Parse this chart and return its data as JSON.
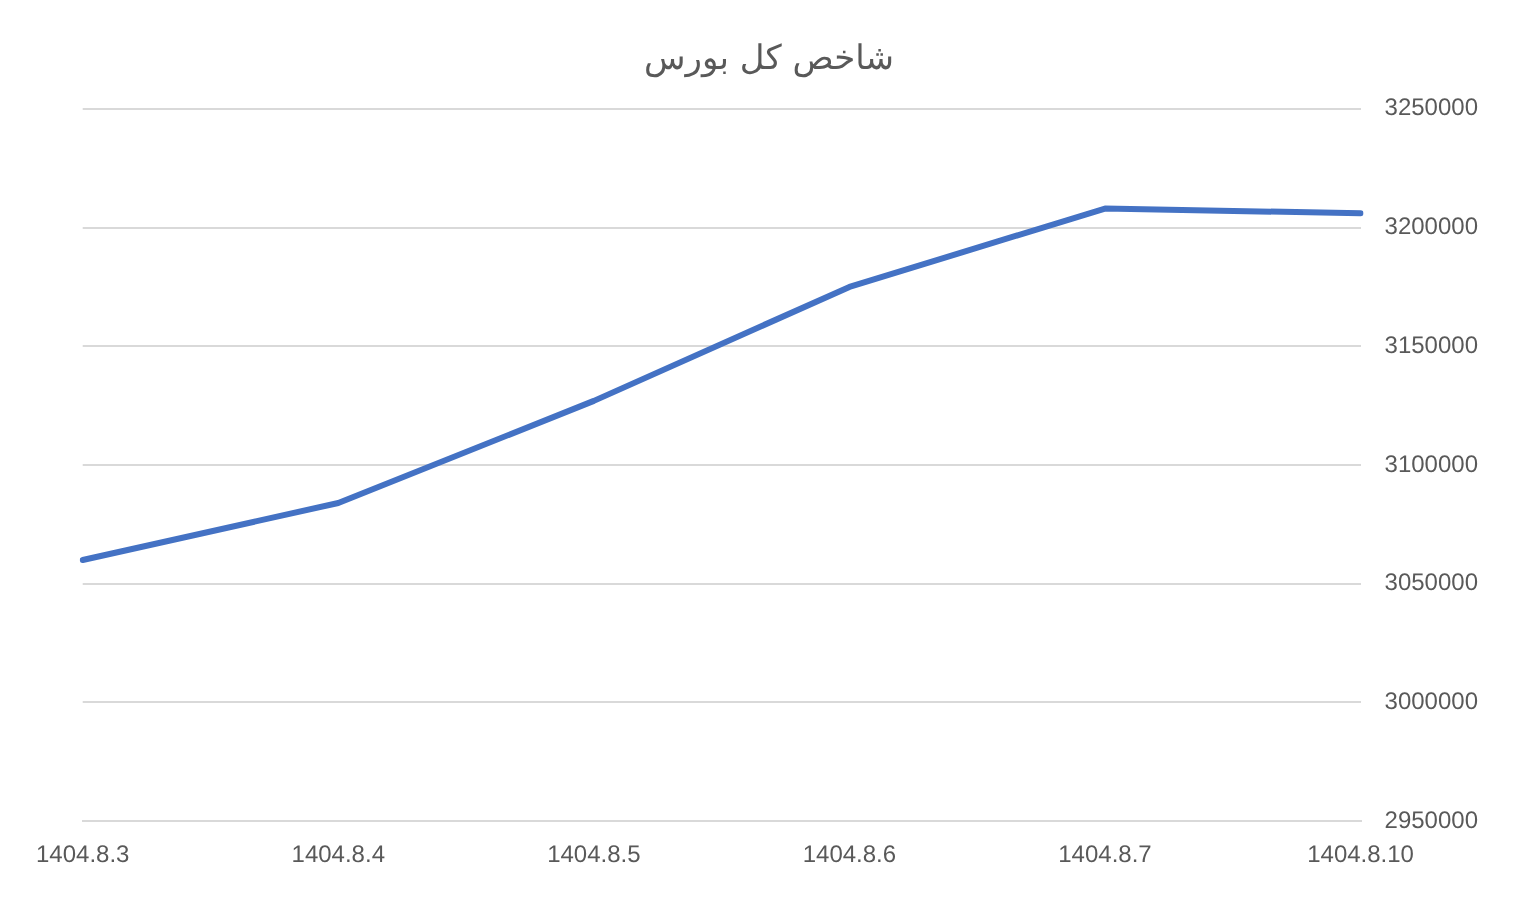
{
  "chart_data": {
    "type": "line",
    "title": "شاخص کل بورس",
    "categories": [
      "1404.8.3",
      "1404.8.4",
      "1404.8.5",
      "1404.8.6",
      "1404.8.7",
      "1404.8.10"
    ],
    "series": [
      {
        "color": "#4472c4",
        "values": [
          3060000,
          3084000,
          3127000,
          3175000,
          3208000,
          3206000
        ]
      }
    ],
    "ylim": [
      2950000,
      3250000
    ],
    "yticks": [
      2950000,
      3000000,
      3050000,
      3100000,
      3150000,
      3200000,
      3250000
    ],
    "grid": "y",
    "legend": false,
    "marker": "none",
    "line_style": "solid"
  }
}
